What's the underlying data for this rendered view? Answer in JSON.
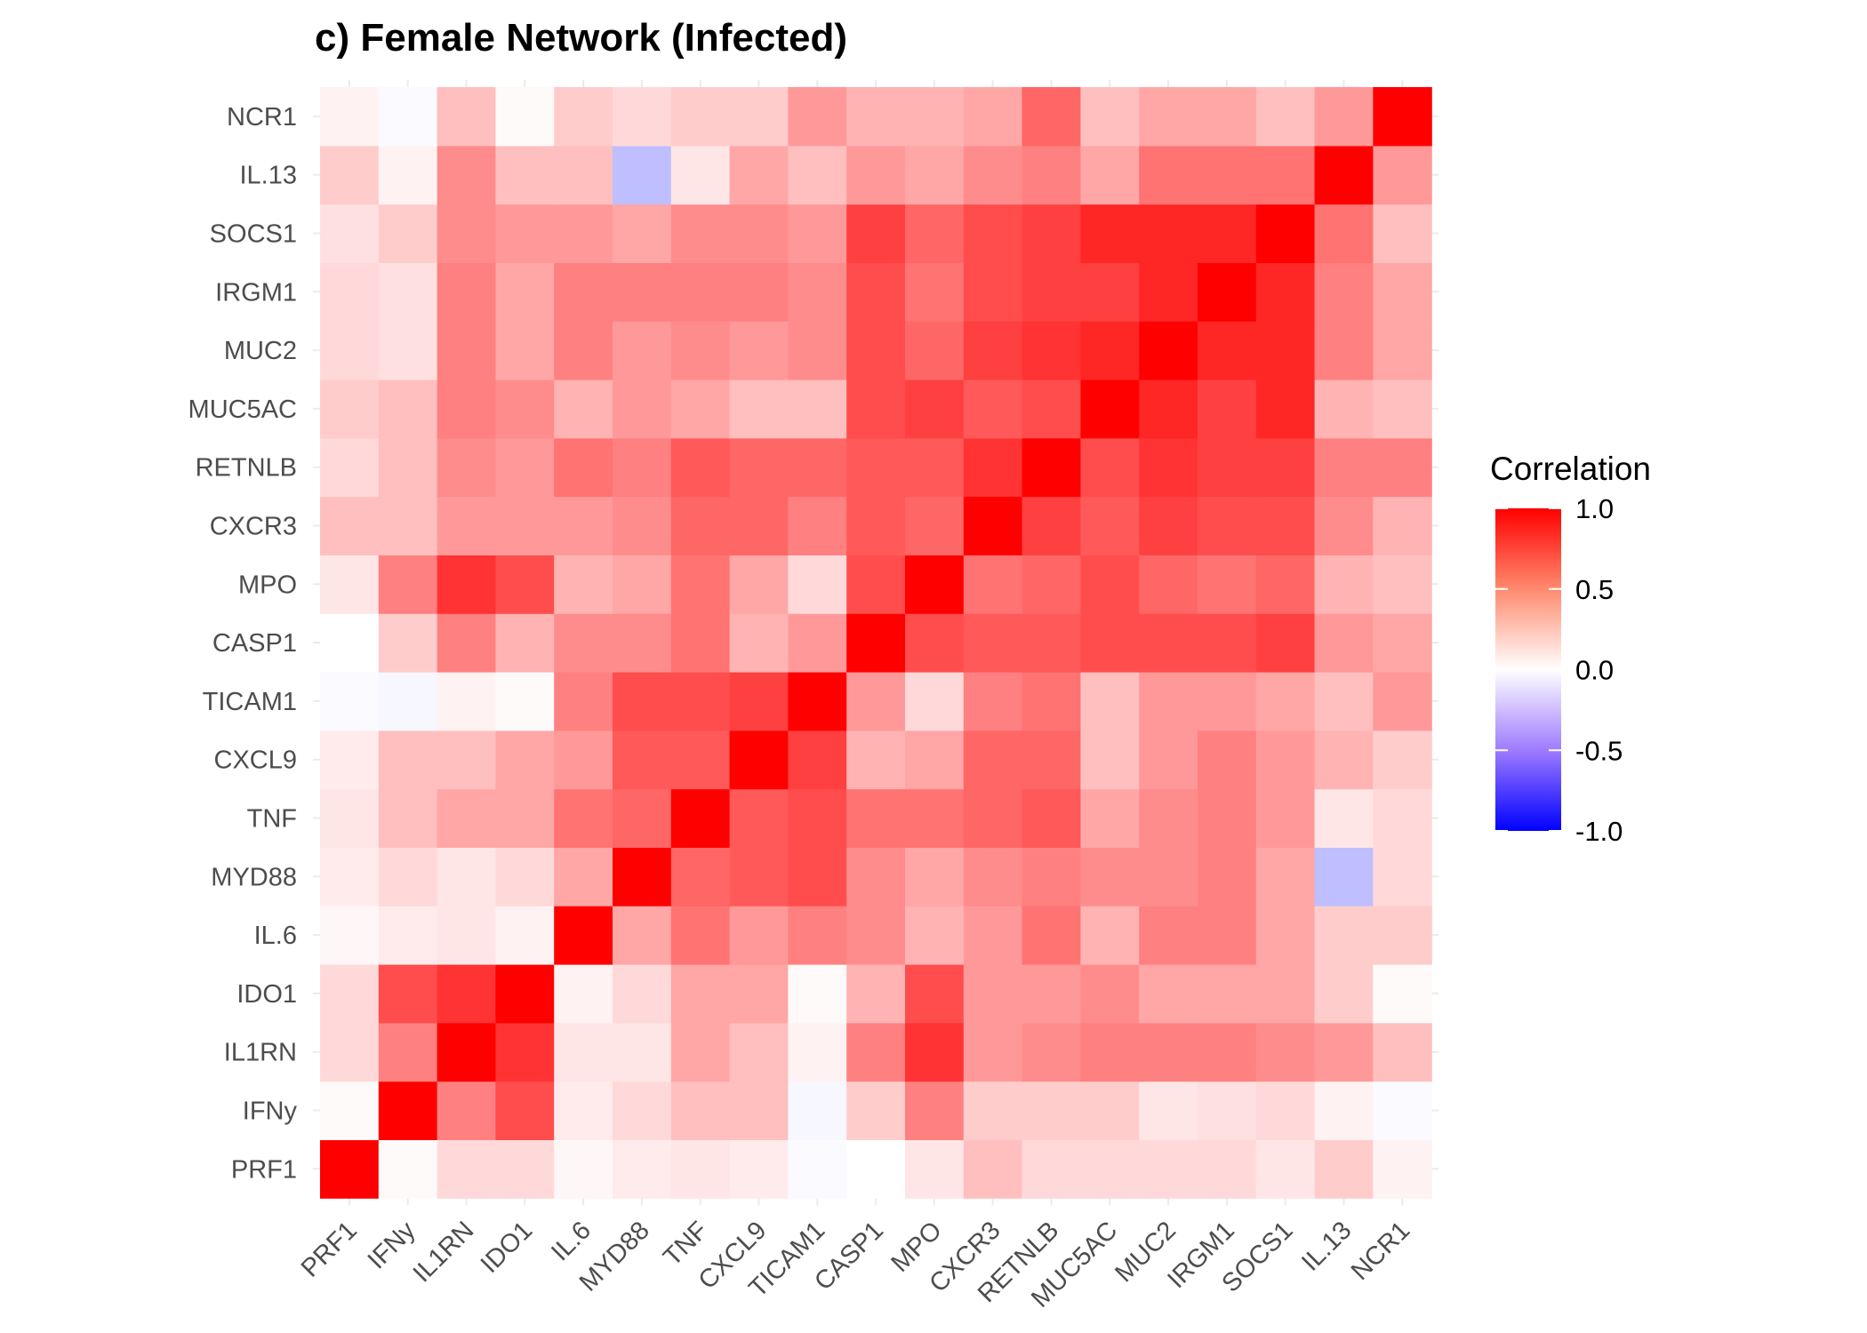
{
  "chart_data": {
    "type": "heatmap",
    "title": "c) Female Network (Infected)",
    "xlabel": "",
    "ylabel": "",
    "variables": [
      "PRF1",
      "IFNy",
      "IL1RN",
      "IDO1",
      "IL.6",
      "MYD88",
      "TNF",
      "CXCL9",
      "TICAM1",
      "CASP1",
      "MPO",
      "CXCR3",
      "RETNLB",
      "MUC5AC",
      "MUC2",
      "IRGM1",
      "SOCS1",
      "IL.13",
      "NCR1"
    ],
    "matrix": [
      [
        1.0,
        0.02,
        0.15,
        0.15,
        0.03,
        0.08,
        0.1,
        0.08,
        -0.02,
        0.0,
        0.1,
        0.25,
        0.15,
        0.15,
        0.15,
        0.15,
        0.1,
        0.2,
        0.05
      ],
      [
        0.02,
        1.0,
        0.5,
        0.7,
        0.08,
        0.15,
        0.25,
        0.25,
        -0.03,
        0.2,
        0.5,
        0.2,
        0.2,
        0.2,
        0.1,
        0.12,
        0.15,
        0.05,
        -0.02
      ],
      [
        0.15,
        0.5,
        1.0,
        0.8,
        0.1,
        0.1,
        0.35,
        0.25,
        0.05,
        0.5,
        0.8,
        0.4,
        0.45,
        0.5,
        0.5,
        0.5,
        0.45,
        0.4,
        0.25
      ],
      [
        0.15,
        0.7,
        0.8,
        1.0,
        0.05,
        0.15,
        0.35,
        0.35,
        0.02,
        0.3,
        0.7,
        0.4,
        0.4,
        0.45,
        0.35,
        0.35,
        0.35,
        0.2,
        0.02
      ],
      [
        0.03,
        0.08,
        0.1,
        0.05,
        1.0,
        0.35,
        0.55,
        0.4,
        0.5,
        0.45,
        0.3,
        0.4,
        0.55,
        0.3,
        0.5,
        0.5,
        0.35,
        0.2,
        0.2
      ],
      [
        0.08,
        0.15,
        0.1,
        0.15,
        0.35,
        1.0,
        0.6,
        0.65,
        0.7,
        0.45,
        0.35,
        0.45,
        0.5,
        0.45,
        0.45,
        0.5,
        0.35,
        -0.25,
        0.15
      ],
      [
        0.1,
        0.25,
        0.35,
        0.35,
        0.55,
        0.6,
        1.0,
        0.65,
        0.7,
        0.55,
        0.55,
        0.6,
        0.65,
        0.35,
        0.45,
        0.5,
        0.4,
        0.1,
        0.15
      ],
      [
        0.08,
        0.25,
        0.25,
        0.35,
        0.4,
        0.65,
        0.65,
        1.0,
        0.75,
        0.3,
        0.35,
        0.6,
        0.6,
        0.25,
        0.4,
        0.5,
        0.4,
        0.3,
        0.2
      ],
      [
        -0.02,
        -0.03,
        0.05,
        0.02,
        0.5,
        0.7,
        0.7,
        0.75,
        1.0,
        0.4,
        0.15,
        0.5,
        0.55,
        0.25,
        0.4,
        0.4,
        0.35,
        0.25,
        0.4
      ],
      [
        0.0,
        0.2,
        0.5,
        0.3,
        0.45,
        0.45,
        0.55,
        0.3,
        0.4,
        1.0,
        0.7,
        0.65,
        0.65,
        0.7,
        0.7,
        0.7,
        0.75,
        0.4,
        0.35
      ],
      [
        0.1,
        0.5,
        0.8,
        0.7,
        0.3,
        0.35,
        0.55,
        0.35,
        0.15,
        0.7,
        1.0,
        0.55,
        0.6,
        0.7,
        0.6,
        0.55,
        0.6,
        0.3,
        0.25
      ],
      [
        0.25,
        0.25,
        0.4,
        0.4,
        0.4,
        0.45,
        0.6,
        0.6,
        0.5,
        0.65,
        0.6,
        1.0,
        0.75,
        0.65,
        0.75,
        0.7,
        0.7,
        0.45,
        0.3
      ],
      [
        0.15,
        0.25,
        0.45,
        0.4,
        0.55,
        0.5,
        0.65,
        0.6,
        0.6,
        0.65,
        0.65,
        0.8,
        1.0,
        0.7,
        0.8,
        0.75,
        0.75,
        0.5,
        0.5
      ],
      [
        0.2,
        0.25,
        0.5,
        0.45,
        0.3,
        0.4,
        0.35,
        0.25,
        0.25,
        0.7,
        0.75,
        0.65,
        0.7,
        1.0,
        0.85,
        0.75,
        0.85,
        0.3,
        0.25
      ],
      [
        0.15,
        0.12,
        0.5,
        0.35,
        0.5,
        0.4,
        0.45,
        0.4,
        0.45,
        0.7,
        0.6,
        0.75,
        0.8,
        0.85,
        1.0,
        0.85,
        0.85,
        0.5,
        0.35
      ],
      [
        0.15,
        0.12,
        0.5,
        0.35,
        0.5,
        0.5,
        0.5,
        0.5,
        0.45,
        0.7,
        0.55,
        0.7,
        0.75,
        0.75,
        0.85,
        1.0,
        0.85,
        0.5,
        0.35
      ],
      [
        0.12,
        0.2,
        0.45,
        0.4,
        0.4,
        0.35,
        0.45,
        0.45,
        0.4,
        0.75,
        0.6,
        0.7,
        0.75,
        0.85,
        0.85,
        0.85,
        1.0,
        0.55,
        0.25
      ],
      [
        0.2,
        0.05,
        0.45,
        0.25,
        0.25,
        -0.25,
        0.1,
        0.35,
        0.25,
        0.4,
        0.35,
        0.45,
        0.5,
        0.35,
        0.55,
        0.55,
        0.55,
        1.0,
        0.4
      ],
      [
        0.05,
        -0.02,
        0.25,
        0.02,
        0.2,
        0.15,
        0.2,
        0.2,
        0.4,
        0.3,
        0.3,
        0.35,
        0.6,
        0.25,
        0.35,
        0.35,
        0.25,
        0.4,
        1.0
      ]
    ],
    "legend": {
      "title": "Correlation",
      "placement": "right",
      "ticks": [
        {
          "value": 1.0,
          "label": "1.0"
        },
        {
          "value": 0.5,
          "label": "0.5"
        },
        {
          "value": 0.0,
          "label": "0.0"
        },
        {
          "value": -0.5,
          "label": "-0.5"
        },
        {
          "value": -1.0,
          "label": "-1.0"
        }
      ]
    },
    "color_scale": {
      "low": "#0000ff",
      "mid": "#ffffff",
      "high": "#ff0000",
      "limits": [
        -1,
        1
      ]
    },
    "grid": false
  }
}
